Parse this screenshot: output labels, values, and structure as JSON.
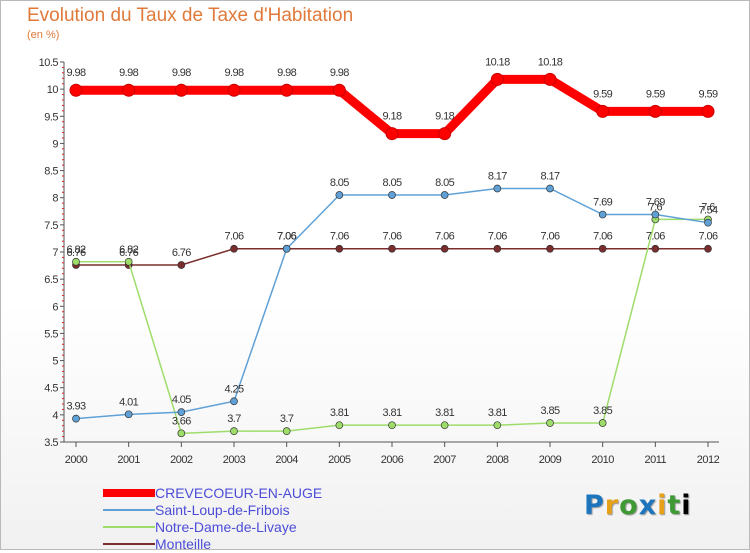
{
  "title": "Evolution du Taux de Taxe d'Habitation",
  "unit_label": "(en %)",
  "logo_text": "Proxiti",
  "chart_data": {
    "type": "line",
    "title": "Evolution du Taux de Taxe d'Habitation",
    "subtitle": "(en %)",
    "x": [
      "2000",
      "2001",
      "2002",
      "2003",
      "2004",
      "2005",
      "2006",
      "2007",
      "2008",
      "2009",
      "2010",
      "2011",
      "2012"
    ],
    "ylim": [
      3.5,
      10.5
    ],
    "yticks": [
      "3.5",
      "4",
      "4.5",
      "5",
      "5.5",
      "6",
      "6.5",
      "7",
      "7.5",
      "8",
      "8.5",
      "9",
      "9.5",
      "10",
      "10.5"
    ],
    "grid": false,
    "legend_position": "bottom-left",
    "series": [
      {
        "name": "CREVECOEUR-EN-AUGE",
        "color": "#ff0000",
        "values": [
          9.98,
          9.98,
          9.98,
          9.98,
          9.98,
          9.98,
          9.18,
          9.18,
          10.18,
          10.18,
          9.59,
          9.59,
          9.59
        ],
        "labels": [
          "9.98",
          "9.98",
          "9.98",
          "9.98",
          "9.98",
          "9.98",
          "9.18",
          "9.18",
          "10.18",
          "10.18",
          "9.59",
          "9.59",
          "9.59"
        ]
      },
      {
        "name": "Saint-Loup-de-Fribois",
        "color": "#5fa1d6",
        "values": [
          3.93,
          4.01,
          4.05,
          4.25,
          7.06,
          8.05,
          8.05,
          8.05,
          8.17,
          8.17,
          7.69,
          7.69,
          7.54
        ],
        "labels": [
          "3.93",
          "4.01",
          "4.05",
          "4.25",
          "7.06",
          "8.05",
          "8.05",
          "8.05",
          "8.17",
          "8.17",
          "7.69",
          "7.69",
          "7.54"
        ]
      },
      {
        "name": "Notre-Dame-de-Livaye",
        "color": "#9edd6a",
        "values": [
          6.82,
          6.82,
          3.66,
          3.7,
          3.7,
          3.81,
          3.81,
          3.81,
          3.81,
          3.85,
          3.85,
          7.6,
          7.6
        ],
        "labels": [
          "6.82",
          "6.82",
          "3.66",
          "3.7",
          "3.7",
          "3.81",
          "3.81",
          "3.81",
          "3.81",
          "3.85",
          "3.85",
          "7.6",
          "7.6"
        ]
      },
      {
        "name": "Monteille",
        "color": "#7b2d2d",
        "values": [
          6.76,
          6.76,
          6.76,
          7.06,
          7.06,
          7.06,
          7.06,
          7.06,
          7.06,
          7.06,
          7.06,
          7.06,
          7.06
        ],
        "labels": [
          "6.76",
          "6.76",
          "6.76",
          "7.06",
          "7.06",
          "7.06",
          "7.06",
          "7.06",
          "7.06",
          "7.06",
          "7.06",
          "7.06",
          "7.06"
        ]
      }
    ]
  }
}
